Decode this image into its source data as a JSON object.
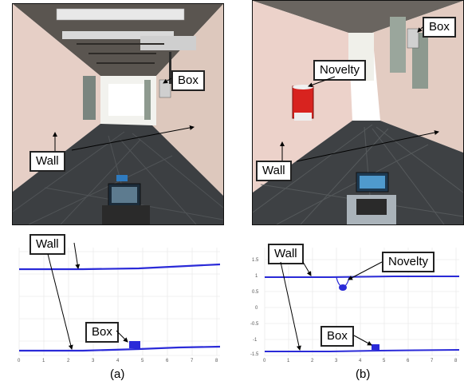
{
  "figure": {
    "panel_a": {
      "caption": "(a)",
      "photo_labels": {
        "wall": "Wall",
        "box": "Box"
      },
      "plot_labels": {
        "wall": "Wall",
        "box": "Box"
      },
      "plot_x_ticks": [
        "0",
        "1",
        "2",
        "3",
        "4",
        "5",
        "6",
        "7",
        "8"
      ]
    },
    "panel_b": {
      "caption": "(b)",
      "photo_labels": {
        "wall": "Wall",
        "box": "Box",
        "novelty": "Novelty"
      },
      "plot_labels": {
        "wall": "Wall",
        "box": "Box",
        "novelty": "Novelty"
      },
      "plot_x_ticks": [
        "0",
        "1",
        "2",
        "3",
        "4",
        "5",
        "6",
        "7",
        "8"
      ],
      "plot_y_ticks": [
        "1.5",
        "1",
        "0.5",
        "0",
        "-0.5",
        "-1",
        "-1.5"
      ]
    }
  },
  "colors": {
    "scan_points": "#2a2ad8",
    "wall_pink": "#e8c9c0",
    "floor_dark": "#3a3d40",
    "novelty_red": "#d8231f"
  }
}
